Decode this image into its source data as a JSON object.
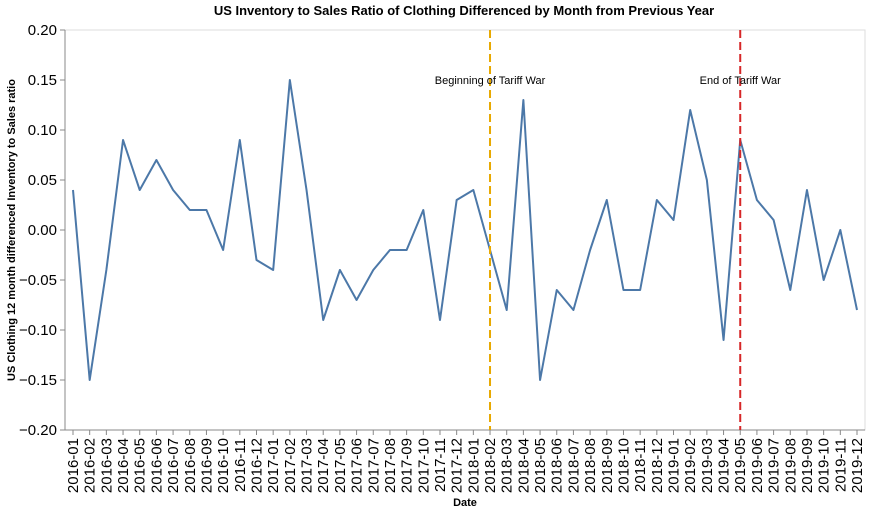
{
  "chart_data": {
    "type": "line",
    "title": "US Inventory to Sales Ratio of Clothing Differenced by Month from Previous Year",
    "xlabel": "Date",
    "ylabel": "US Clothing 12 month differenced Inventory to Sales ratio",
    "ylim": [
      -0.2,
      0.2
    ],
    "yticks": [
      -0.2,
      -0.15,
      -0.1,
      -0.05,
      0.0,
      0.05,
      0.1,
      0.15,
      0.2
    ],
    "ytick_labels": [
      "−0.20",
      "−0.15",
      "−0.10",
      "−0.05",
      "0.00",
      "0.05",
      "0.10",
      "0.15",
      "0.20"
    ],
    "grid": false,
    "x": [
      "2016-01",
      "2016-02",
      "2016-03",
      "2016-04",
      "2016-05",
      "2016-06",
      "2016-07",
      "2016-08",
      "2016-09",
      "2016-10",
      "2016-11",
      "2016-12",
      "2017-01",
      "2017-02",
      "2017-03",
      "2017-04",
      "2017-05",
      "2017-06",
      "2017-07",
      "2017-08",
      "2017-09",
      "2017-10",
      "2017-11",
      "2017-12",
      "2018-01",
      "2018-02",
      "2018-03",
      "2018-04",
      "2018-05",
      "2018-06",
      "2018-07",
      "2018-08",
      "2018-09",
      "2018-10",
      "2018-11",
      "2018-12",
      "2019-01",
      "2019-02",
      "2019-03",
      "2019-04",
      "2019-05",
      "2019-06",
      "2019-07",
      "2019-08",
      "2019-09",
      "2019-10",
      "2019-11",
      "2019-12"
    ],
    "series": [
      {
        "color": "#4c78a8",
        "values": [
          0.04,
          -0.15,
          -0.04,
          0.09,
          0.04,
          0.07,
          0.04,
          0.02,
          0.02,
          -0.02,
          0.09,
          -0.03,
          -0.04,
          0.15,
          0.04,
          -0.09,
          -0.04,
          -0.07,
          -0.04,
          -0.02,
          -0.02,
          0.02,
          -0.09,
          0.03,
          0.04,
          -0.02,
          -0.08,
          0.13,
          -0.15,
          -0.06,
          -0.08,
          -0.02,
          0.03,
          -0.06,
          -0.06,
          0.03,
          0.01,
          0.12,
          0.05,
          -0.11,
          0.09,
          0.03,
          0.01,
          -0.06,
          0.04,
          -0.05,
          0.0,
          -0.08
        ]
      }
    ],
    "annotations": [
      {
        "x": "2018-02",
        "label": "Beginning of Tariff War",
        "color": "#e8a800",
        "style": "dashed",
        "label_y": 0.15
      },
      {
        "x": "2019-05",
        "label": "End of Tariff War",
        "color": "#d62728",
        "style": "dashed",
        "label_y": 0.15
      }
    ]
  }
}
